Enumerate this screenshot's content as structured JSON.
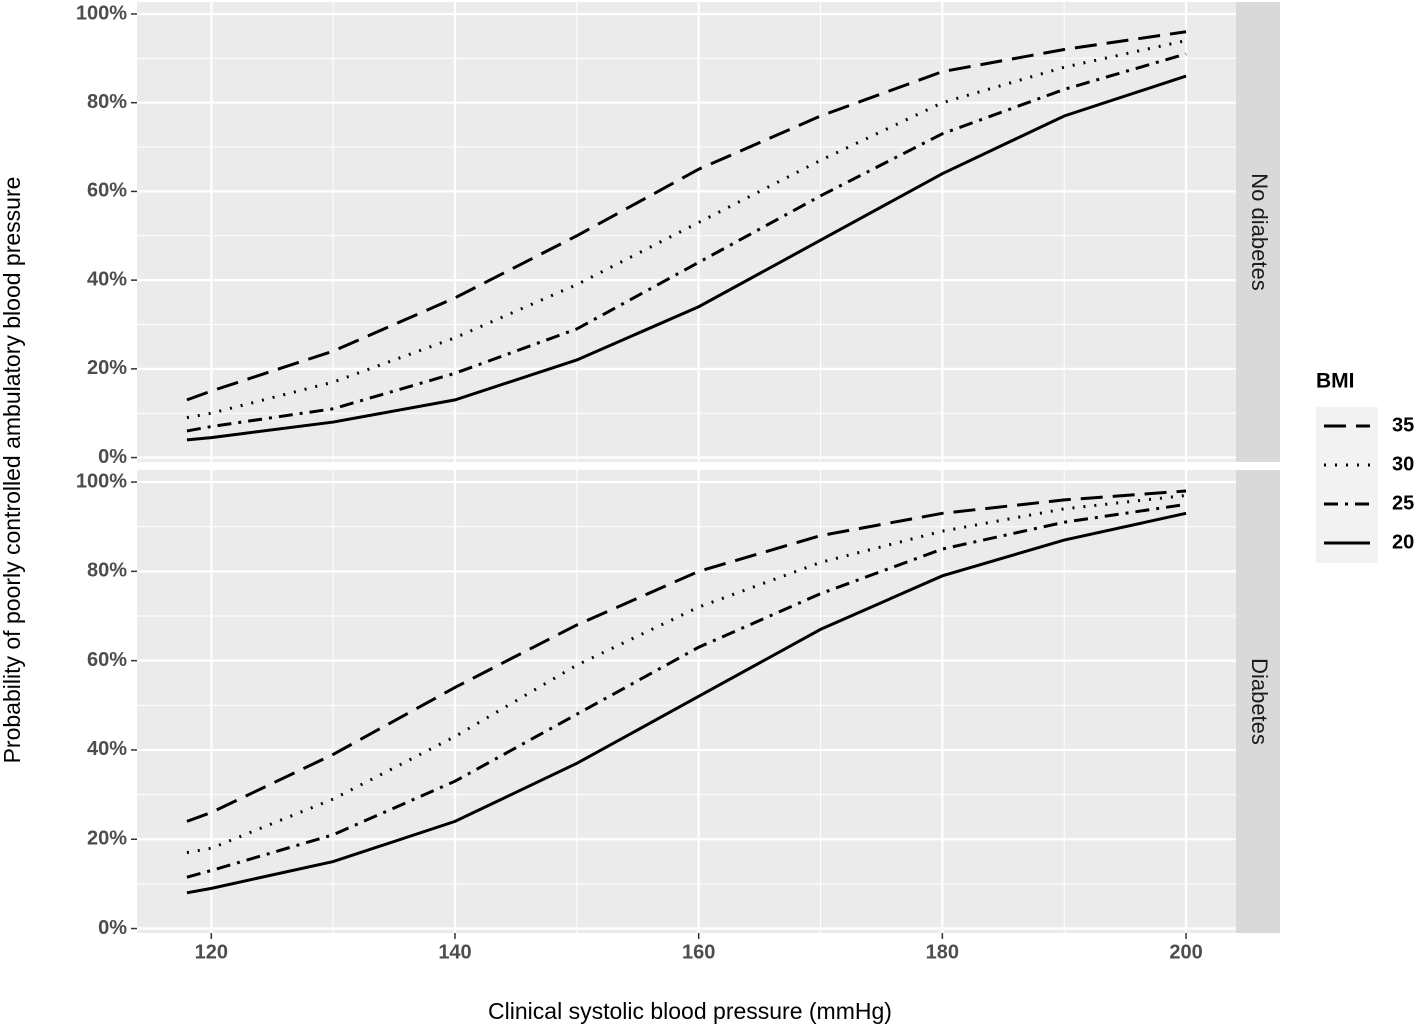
{
  "figure": {
    "x_label": "Clinical systolic blood pressure (mmHg)",
    "y_label": "Probability of poorly controlled ambulatory blood pressure",
    "legend_title": "BMI",
    "legend_position": "right"
  },
  "chart_data": [
    {
      "type": "line",
      "strip": "No diabetes",
      "grid": true,
      "x": [
        118,
        120,
        130,
        140,
        150,
        160,
        170,
        180,
        190,
        200
      ],
      "xlim": [
        113.9,
        204.1
      ],
      "xticks": [
        120,
        140,
        160,
        180,
        200
      ],
      "ylim": [
        -1,
        102.7
      ],
      "yticks": [
        {
          "value": 0,
          "label": "0%"
        },
        {
          "value": 20,
          "label": "20%"
        },
        {
          "value": 40,
          "label": "40%"
        },
        {
          "value": 60,
          "label": "60%"
        },
        {
          "value": 80,
          "label": "80%"
        },
        {
          "value": 100,
          "label": "100%"
        }
      ],
      "series": [
        {
          "name": "35",
          "color": "#000000",
          "dash": "long",
          "values": [
            13,
            15,
            24,
            36,
            50,
            65,
            77,
            87,
            92,
            96
          ]
        },
        {
          "name": "30",
          "color": "#000000",
          "dash": "dotted",
          "values": [
            9,
            10,
            17,
            27,
            39,
            53,
            67,
            80,
            88,
            94
          ]
        },
        {
          "name": "25",
          "color": "#000000",
          "dash": "dashdot",
          "values": [
            6,
            7,
            11,
            19,
            29,
            44,
            59,
            73,
            83,
            91
          ]
        },
        {
          "name": "20",
          "color": "#000000",
          "dash": "solid",
          "values": [
            4,
            4.5,
            8,
            13,
            22,
            34,
            49,
            64,
            77,
            86
          ]
        }
      ]
    },
    {
      "type": "line",
      "strip": "Diabetes",
      "grid": true,
      "x": [
        118,
        120,
        130,
        140,
        150,
        160,
        170,
        180,
        190,
        200
      ],
      "xlim": [
        113.9,
        204.1
      ],
      "xticks": [
        120,
        140,
        160,
        180,
        200
      ],
      "ylim": [
        -1,
        102.7
      ],
      "yticks": [
        {
          "value": 0,
          "label": "0%"
        },
        {
          "value": 20,
          "label": "20%"
        },
        {
          "value": 40,
          "label": "40%"
        },
        {
          "value": 60,
          "label": "60%"
        },
        {
          "value": 80,
          "label": "80%"
        },
        {
          "value": 100,
          "label": "100%"
        }
      ],
      "series": [
        {
          "color": "#000000",
          "dash": "long",
          "values": [
            24,
            26,
            39,
            54,
            68,
            80,
            88,
            93,
            96,
            98
          ]
        },
        {
          "color": "#000000",
          "dash": "dotted",
          "values": [
            17,
            18,
            29,
            43,
            59,
            72,
            82,
            89,
            94,
            97
          ]
        },
        {
          "color": "#000000",
          "dash": "dashdot",
          "values": [
            11.5,
            13,
            21,
            33,
            48,
            63,
            75,
            85,
            91,
            95
          ]
        },
        {
          "color": "#000000",
          "dash": "solid",
          "values": [
            8,
            9,
            15,
            24,
            37,
            52,
            67,
            79,
            87,
            93
          ]
        }
      ]
    }
  ]
}
